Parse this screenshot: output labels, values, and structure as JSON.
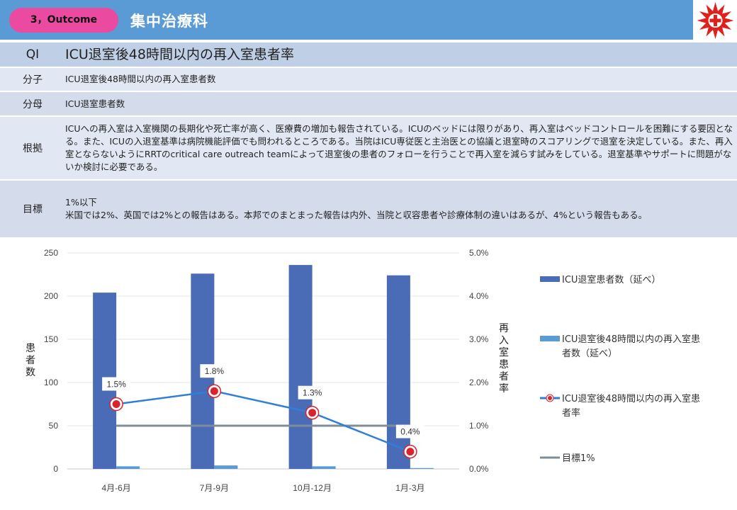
{
  "header": {
    "badge": "3，Outcome",
    "department": "集中治療科"
  },
  "rows": [
    {
      "label": "QI",
      "value": "ICU退室後48時間以内の再入室患者率"
    },
    {
      "label": "分子",
      "value": "ICU退室後48時間以内の再入室患者数"
    },
    {
      "label": "分母",
      "value": "ICU退室患者数"
    },
    {
      "label": "根拠",
      "value": "ICUへの再入室は入室機関の長期化や死亡率が高く、医療費の増加も報告されている。ICUのベッドには限りがあり、再入室はベッドコントロールを困難にする要因となる。また、ICUの入退室基準は病院機能評価でも問われるところである。当院はICU専従医と主治医との協議と退室時のスコアリングで退室を決定している。また、再入室とならないようにRRTのcritical care outreach teamによって退室後の患者のフォローを行うことで再入室を減らす試みをしている。退室基準やサポートに問題がないか検討に必要である。"
    },
    {
      "label": "目標",
      "value_lines": [
        "1%以下",
        "米国では2%、英国では2%との報告はある。本邦でのまとまった報告は内外、当院と収容患者や診療体制の違いはあるが、4%という報告もある。"
      ]
    }
  ],
  "chart_data": {
    "type": "bar",
    "categories": [
      "4月-6月",
      "7月-9月",
      "10月-12月",
      "1月-3月"
    ],
    "series": [
      {
        "name": "ICU退室患者数（延べ）",
        "kind": "bar",
        "axis": "left",
        "color": "#4a6bb5",
        "values": [
          204,
          226,
          236,
          224
        ]
      },
      {
        "name": "ICU退室後48時間以内の再入室患者数（延べ）",
        "kind": "bar",
        "axis": "left",
        "color": "#5b9bd5",
        "values": [
          3,
          4,
          3,
          1
        ]
      },
      {
        "name": "ICU退室後48時間以内の再入室患者率",
        "kind": "line",
        "axis": "right",
        "color": "#2f7fd8",
        "values": [
          1.5,
          1.8,
          1.3,
          0.4
        ],
        "labels": [
          "1.5%",
          "1.8%",
          "1.3%",
          "0.4%"
        ]
      },
      {
        "name": "目標1%",
        "kind": "line",
        "axis": "right",
        "color": "#7f8c99",
        "values": [
          1.0,
          1.0,
          1.0,
          1.0
        ]
      }
    ],
    "ylabel": "患者数",
    "y2label": "再入室患者率",
    "ylim": [
      0,
      250
    ],
    "y2lim": [
      0,
      5.0
    ],
    "yticks": [
      "0",
      "50",
      "100",
      "150",
      "200",
      "250"
    ],
    "y2ticks": [
      "0.0%",
      "1.0%",
      "2.0%",
      "3.0%",
      "4.0%",
      "5.0%"
    ],
    "legend_position": "right",
    "grid": true
  }
}
